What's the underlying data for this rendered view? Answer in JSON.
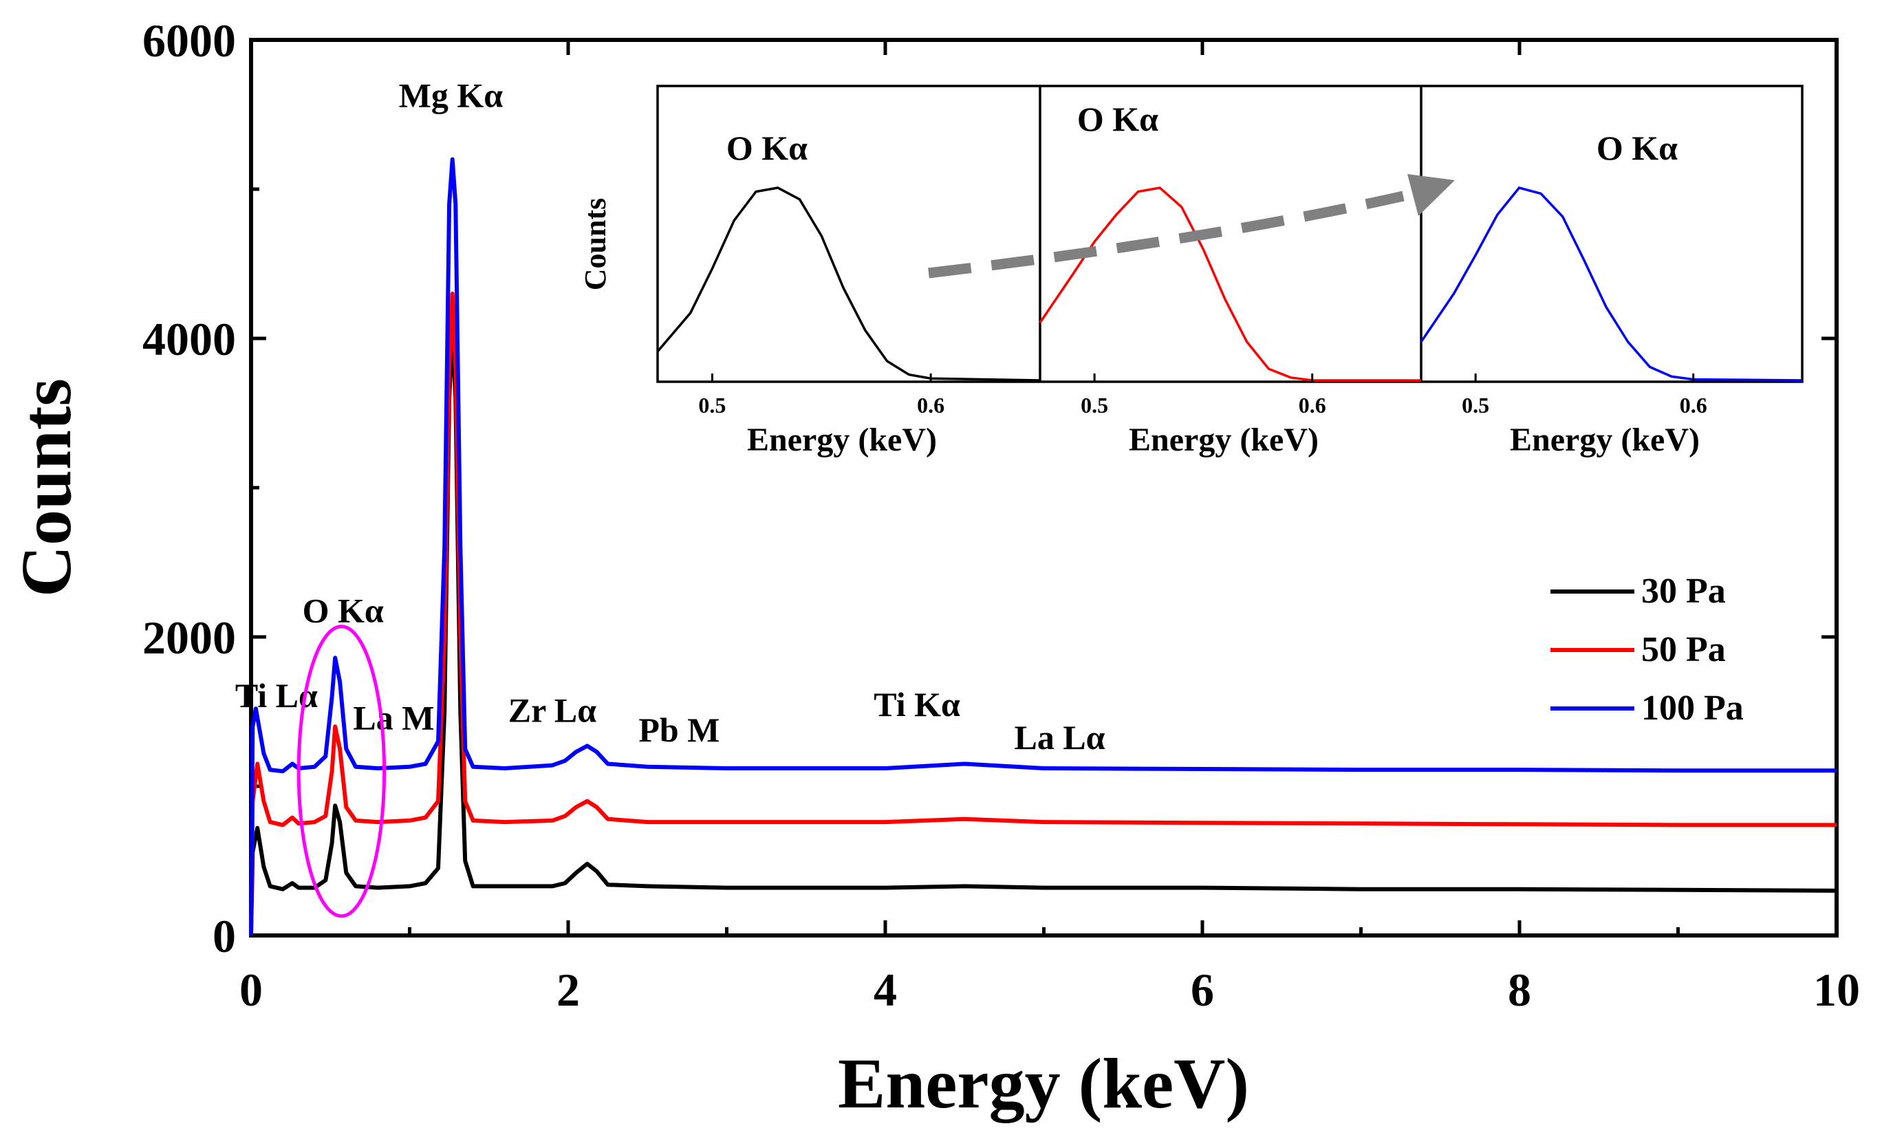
{
  "chart_data": {
    "type": "line",
    "title": "",
    "xlabel": "Energy (keV)",
    "ylabel": "Counts",
    "xlim": [
      0,
      10
    ],
    "ylim": [
      0,
      6000
    ],
    "x_ticks": [
      0,
      2,
      4,
      6,
      8,
      10
    ],
    "y_ticks": [
      0,
      2000,
      4000,
      6000
    ],
    "legend": {
      "placement": "right"
    },
    "series": [
      {
        "name": "30 Pa",
        "color": "#000000",
        "points": [
          [
            0,
            0
          ],
          [
            0.01,
            560
          ],
          [
            0.04,
            720
          ],
          [
            0.08,
            460
          ],
          [
            0.12,
            330
          ],
          [
            0.2,
            310
          ],
          [
            0.26,
            350
          ],
          [
            0.3,
            320
          ],
          [
            0.4,
            320
          ],
          [
            0.47,
            370
          ],
          [
            0.51,
            620
          ],
          [
            0.53,
            870
          ],
          [
            0.56,
            760
          ],
          [
            0.6,
            420
          ],
          [
            0.66,
            330
          ],
          [
            0.8,
            320
          ],
          [
            1.0,
            330
          ],
          [
            1.1,
            350
          ],
          [
            1.18,
            450
          ],
          [
            1.22,
            1500
          ],
          [
            1.25,
            3600
          ],
          [
            1.27,
            4050
          ],
          [
            1.29,
            3600
          ],
          [
            1.32,
            1500
          ],
          [
            1.35,
            500
          ],
          [
            1.4,
            330
          ],
          [
            1.6,
            330
          ],
          [
            1.9,
            330
          ],
          [
            1.98,
            350
          ],
          [
            2.05,
            420
          ],
          [
            2.12,
            480
          ],
          [
            2.18,
            430
          ],
          [
            2.25,
            340
          ],
          [
            2.5,
            330
          ],
          [
            3,
            320
          ],
          [
            4,
            320
          ],
          [
            4.5,
            330
          ],
          [
            5,
            320
          ],
          [
            6,
            320
          ],
          [
            7,
            310
          ],
          [
            8,
            310
          ],
          [
            9,
            305
          ],
          [
            10,
            300
          ]
        ]
      },
      {
        "name": "50 Pa",
        "color": "#ff0000",
        "points": [
          [
            0,
            0
          ],
          [
            0.01,
            900
          ],
          [
            0.04,
            1150
          ],
          [
            0.08,
            900
          ],
          [
            0.12,
            760
          ],
          [
            0.2,
            740
          ],
          [
            0.26,
            790
          ],
          [
            0.3,
            750
          ],
          [
            0.4,
            760
          ],
          [
            0.47,
            800
          ],
          [
            0.51,
            1100
          ],
          [
            0.53,
            1400
          ],
          [
            0.56,
            1250
          ],
          [
            0.6,
            860
          ],
          [
            0.66,
            770
          ],
          [
            0.8,
            760
          ],
          [
            1.0,
            770
          ],
          [
            1.1,
            790
          ],
          [
            1.18,
            900
          ],
          [
            1.22,
            2000
          ],
          [
            1.25,
            3800
          ],
          [
            1.27,
            4300
          ],
          [
            1.29,
            3800
          ],
          [
            1.32,
            2000
          ],
          [
            1.35,
            900
          ],
          [
            1.4,
            770
          ],
          [
            1.6,
            760
          ],
          [
            1.9,
            770
          ],
          [
            1.98,
            800
          ],
          [
            2.05,
            860
          ],
          [
            2.12,
            900
          ],
          [
            2.18,
            860
          ],
          [
            2.25,
            780
          ],
          [
            2.5,
            760
          ],
          [
            3,
            760
          ],
          [
            4,
            760
          ],
          [
            4.5,
            780
          ],
          [
            5,
            760
          ],
          [
            6,
            755
          ],
          [
            7,
            750
          ],
          [
            8,
            745
          ],
          [
            9,
            740
          ],
          [
            10,
            740
          ]
        ]
      },
      {
        "name": "100 Pa",
        "color": "#0000ff",
        "points": [
          [
            0,
            0
          ],
          [
            0.01,
            1400
          ],
          [
            0.03,
            1520
          ],
          [
            0.08,
            1220
          ],
          [
            0.12,
            1110
          ],
          [
            0.2,
            1100
          ],
          [
            0.26,
            1150
          ],
          [
            0.3,
            1120
          ],
          [
            0.4,
            1130
          ],
          [
            0.47,
            1200
          ],
          [
            0.51,
            1600
          ],
          [
            0.53,
            1860
          ],
          [
            0.56,
            1700
          ],
          [
            0.6,
            1250
          ],
          [
            0.66,
            1130
          ],
          [
            0.8,
            1120
          ],
          [
            1.0,
            1130
          ],
          [
            1.1,
            1150
          ],
          [
            1.18,
            1300
          ],
          [
            1.22,
            2600
          ],
          [
            1.25,
            4900
          ],
          [
            1.27,
            5200
          ],
          [
            1.29,
            4900
          ],
          [
            1.32,
            2600
          ],
          [
            1.35,
            1250
          ],
          [
            1.4,
            1130
          ],
          [
            1.6,
            1120
          ],
          [
            1.9,
            1140
          ],
          [
            1.98,
            1170
          ],
          [
            2.05,
            1230
          ],
          [
            2.12,
            1270
          ],
          [
            2.18,
            1230
          ],
          [
            2.25,
            1150
          ],
          [
            2.5,
            1130
          ],
          [
            3,
            1120
          ],
          [
            4,
            1120
          ],
          [
            4.5,
            1150
          ],
          [
            5,
            1120
          ],
          [
            6,
            1115
          ],
          [
            7,
            1110
          ],
          [
            8,
            1110
          ],
          [
            9,
            1105
          ],
          [
            10,
            1105
          ]
        ]
      }
    ],
    "annotations": [
      {
        "text": "Mg Kα",
        "x": 1.26,
        "y": 5550
      },
      {
        "text": "O Kα",
        "x": 0.58,
        "y": 2100
      },
      {
        "text": "Ti Lα",
        "x": 0.16,
        "y": 1530
      },
      {
        "text": "La M",
        "x": 0.9,
        "y": 1380
      },
      {
        "text": "Zr Lα",
        "x": 1.9,
        "y": 1430
      },
      {
        "text": "Pb M",
        "x": 2.7,
        "y": 1300
      },
      {
        "text": "Ti Kα",
        "x": 4.2,
        "y": 1470
      },
      {
        "text": "La Lα",
        "x": 5.1,
        "y": 1250
      }
    ],
    "highlight_ellipse": {
      "center": [
        0.57,
        1100
      ],
      "radius_x": 0.27,
      "radius_y": 970,
      "color": "#ff00ff",
      "label": "O Kα"
    },
    "inset": {
      "ylabel": "Counts",
      "xlabel": "Energy (keV)",
      "xlim": [
        0.475,
        0.65
      ],
      "x_ticks": [
        0.5,
        0.6
      ],
      "panels": [
        {
          "label": "O Kα",
          "series": "30 Pa",
          "color": "#000000",
          "points": [
            [
              0.475,
              0.15
            ],
            [
              0.49,
              0.35
            ],
            [
              0.5,
              0.58
            ],
            [
              0.51,
              0.83
            ],
            [
              0.52,
              0.98
            ],
            [
              0.53,
              1.0
            ],
            [
              0.54,
              0.94
            ],
            [
              0.55,
              0.75
            ],
            [
              0.56,
              0.48
            ],
            [
              0.57,
              0.26
            ],
            [
              0.58,
              0.1
            ],
            [
              0.59,
              0.03
            ],
            [
              0.6,
              0.01
            ],
            [
              0.65,
              0.0
            ]
          ]
        },
        {
          "label": "O Kα",
          "series": "50 Pa",
          "color": "#ff0000",
          "points": [
            [
              0.475,
              0.3
            ],
            [
              0.49,
              0.55
            ],
            [
              0.5,
              0.72
            ],
            [
              0.51,
              0.86
            ],
            [
              0.52,
              0.98
            ],
            [
              0.53,
              1.0
            ],
            [
              0.54,
              0.9
            ],
            [
              0.55,
              0.68
            ],
            [
              0.56,
              0.42
            ],
            [
              0.57,
              0.2
            ],
            [
              0.58,
              0.06
            ],
            [
              0.59,
              0.015
            ],
            [
              0.6,
              0.0
            ],
            [
              0.65,
              0.0
            ]
          ]
        },
        {
          "label": "O Kα",
          "series": "100 Pa",
          "color": "#0000ff",
          "points": [
            [
              0.475,
              0.2
            ],
            [
              0.49,
              0.45
            ],
            [
              0.5,
              0.65
            ],
            [
              0.51,
              0.86
            ],
            [
              0.52,
              1.0
            ],
            [
              0.53,
              0.97
            ],
            [
              0.54,
              0.85
            ],
            [
              0.55,
              0.62
            ],
            [
              0.56,
              0.38
            ],
            [
              0.57,
              0.2
            ],
            [
              0.58,
              0.07
            ],
            [
              0.59,
              0.02
            ],
            [
              0.6,
              0.005
            ],
            [
              0.65,
              0.0
            ]
          ]
        }
      ]
    }
  }
}
